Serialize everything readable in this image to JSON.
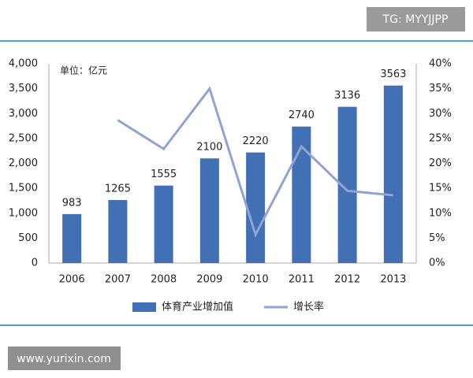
{
  "chart_data": {
    "type": "bar",
    "annotation": "单位：亿元",
    "categories": [
      "2006",
      "2007",
      "2008",
      "2009",
      "2010",
      "2011",
      "2012",
      "2013"
    ],
    "series": [
      {
        "name": "体育产业增加值",
        "type": "bar",
        "color": "#4270b5",
        "values": [
          983,
          1265,
          1555,
          2100,
          2220,
          2740,
          3136,
          3563
        ]
      },
      {
        "name": "增长率",
        "type": "line",
        "axis": "y2",
        "color": "#8fa4d2",
        "values": [
          null,
          28.7,
          22.9,
          35.0,
          5.7,
          23.4,
          14.5,
          13.6
        ]
      }
    ],
    "ylim": [
      0,
      4000
    ],
    "yticks": [
      0,
      500,
      {
        "value": 1000,
        "label": "1,000"
      },
      {
        "value": 1500,
        "label": "1,500"
      },
      {
        "value": 2000,
        "label": "2,000"
      },
      {
        "value": 2500,
        "label": "2,500"
      },
      {
        "value": 3000,
        "label": "3,000"
      },
      {
        "value": 3500,
        "label": "3,500"
      },
      {
        "value": 4000,
        "label": "4,000"
      }
    ],
    "y2lim": [
      0,
      40
    ],
    "y2ticks": [
      {
        "value": 0,
        "label": "0%"
      },
      {
        "value": 5,
        "label": "5%"
      },
      {
        "value": 10,
        "label": "10%"
      },
      {
        "value": 15,
        "label": "15%"
      },
      {
        "value": 20,
        "label": "20%"
      },
      {
        "value": 25,
        "label": "25%"
      },
      {
        "value": 30,
        "label": "30%"
      },
      {
        "value": 35,
        "label": "35%"
      },
      {
        "value": 40,
        "label": "40%"
      }
    ],
    "grid": false,
    "legend": "bottom"
  },
  "watermarks": [
    "TG: MYYJJPP",
    "www.yurixin.com"
  ]
}
